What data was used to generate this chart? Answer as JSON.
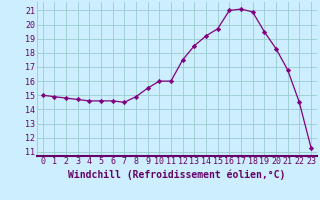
{
  "x": [
    0,
    1,
    2,
    3,
    4,
    5,
    6,
    7,
    8,
    9,
    10,
    11,
    12,
    13,
    14,
    15,
    16,
    17,
    18,
    19,
    20,
    21,
    22,
    23
  ],
  "y": [
    15.0,
    14.9,
    14.8,
    14.7,
    14.6,
    14.6,
    14.6,
    14.5,
    14.9,
    15.5,
    16.0,
    16.0,
    17.5,
    18.5,
    19.2,
    19.7,
    21.0,
    21.1,
    20.9,
    19.5,
    18.3,
    16.8,
    14.5,
    11.3
  ],
  "line_color": "#800080",
  "marker": "D",
  "marker_size": 2.2,
  "bg_color": "#cceeff",
  "grid_color": "#99cccc",
  "xlabel": "Windchill (Refroidissement éolien,°C)",
  "xlabel_fontsize": 7,
  "ylabel_ticks": [
    11,
    12,
    13,
    14,
    15,
    16,
    17,
    18,
    19,
    20,
    21
  ],
  "ylim": [
    10.7,
    21.6
  ],
  "xlim": [
    -0.5,
    23.5
  ],
  "xtick_labels": [
    "0",
    "1",
    "2",
    "3",
    "4",
    "5",
    "6",
    "7",
    "8",
    "9",
    "10",
    "11",
    "12",
    "13",
    "14",
    "15",
    "16",
    "17",
    "18",
    "19",
    "20",
    "21",
    "22",
    "23"
  ],
  "tick_fontsize": 6,
  "spine_color": "#660066",
  "xlabel_color": "#660066"
}
